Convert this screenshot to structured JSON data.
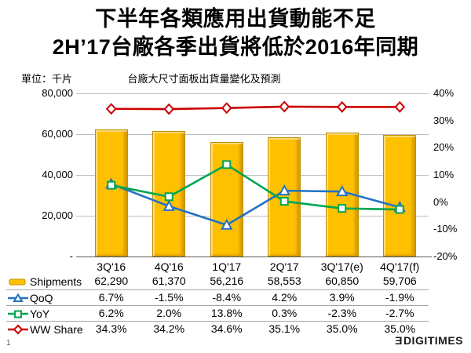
{
  "slide": {
    "title_line1": "下半年各類應用出貨動能不足",
    "title_line2": "2H’17台廠各季出貨將低於2016年同期",
    "page_number": "1",
    "logo_mark": "Ǝ",
    "logo_text": "DIGITIMES"
  },
  "chart_data": {
    "type": "bar-line-combo",
    "title": "台廠大尺寸面板出貨量變化及預測",
    "unit_label": "單位：千片",
    "categories": [
      "3Q'16",
      "4Q'16",
      "1Q'17",
      "2Q'17",
      "3Q'17(e)",
      "4Q'17(f)"
    ],
    "series": [
      {
        "name": "Shipments",
        "type": "bar",
        "axis": "left",
        "marker": "bar",
        "values": [
          62290,
          61370,
          56216,
          58553,
          60850,
          59706
        ],
        "color": "#FFC000",
        "border_color": "#BF8F00"
      },
      {
        "name": "QoQ",
        "type": "line",
        "axis": "right",
        "marker": "triangle",
        "values": [
          6.7,
          -1.5,
          -8.4,
          4.2,
          3.9,
          -1.9
        ],
        "color": "#2272C3"
      },
      {
        "name": "YoY",
        "type": "line",
        "axis": "right",
        "marker": "square",
        "values": [
          6.2,
          2.0,
          13.8,
          0.3,
          -2.3,
          -2.7
        ],
        "color": "#00A551"
      },
      {
        "name": "WW Share",
        "type": "line",
        "axis": "right",
        "marker": "diamond",
        "values": [
          34.3,
          34.2,
          34.6,
          35.1,
          35.0,
          35.0
        ],
        "color": "#CC0000"
      }
    ],
    "left_axis": {
      "min": 0,
      "max": 80000,
      "tick_labels": [
        "80,000",
        "60,000",
        "40,000",
        "20,000",
        "-"
      ]
    },
    "right_axis": {
      "min": -20,
      "max": 40,
      "tick_labels": [
        "40%",
        "30%",
        "20%",
        "10%",
        "0%",
        "-10%",
        "-20%"
      ]
    },
    "grid": true,
    "gridline_color": "#BFBFBF",
    "legend_position": "table-left"
  }
}
